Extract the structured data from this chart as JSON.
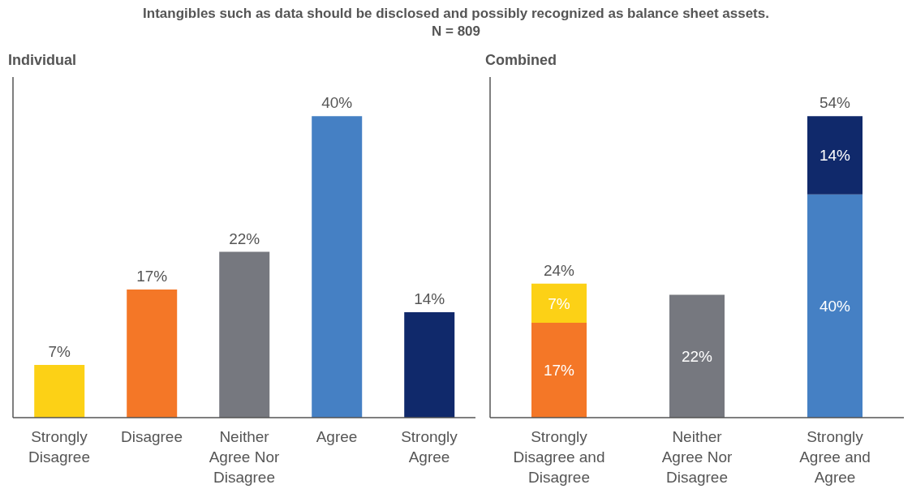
{
  "chart_data": [
    {
      "type": "bar",
      "title": "Individual",
      "annotations": [
        "Intangibles such as data should be disclosed and possibly recognized as balance sheet assets.",
        "N = 809"
      ],
      "categories": [
        "Strongly Disagree",
        "Disagree",
        "Neither Agree Nor Disagree",
        "Agree",
        "Strongly Agree"
      ],
      "values": [
        7,
        17,
        22,
        40,
        14
      ],
      "colors": [
        "#fcd116",
        "#f47727",
        "#76787f",
        "#4580c4",
        "#10296b"
      ],
      "value_labels": [
        "7%",
        "17%",
        "22%",
        "40%",
        "14%"
      ]
    },
    {
      "type": "bar",
      "title": "Combined",
      "stacked": true,
      "categories": [
        "Strongly Disagree and Disagree",
        "Neither Agree Nor Disagree",
        "Strongly Agree and Agree"
      ],
      "series": [
        {
          "colors": [
            "#f47727",
            "#76787f",
            "#4580c4"
          ],
          "values": [
            17,
            22,
            40
          ],
          "value_labels": [
            "17%",
            "22%",
            "40%"
          ]
        },
        {
          "colors": [
            "#fcd116",
            null,
            "#10296b"
          ],
          "values": [
            7,
            null,
            14
          ],
          "value_labels": [
            "7%",
            null,
            "14%"
          ]
        }
      ],
      "totals": [
        "24%",
        null,
        "54%"
      ]
    }
  ]
}
